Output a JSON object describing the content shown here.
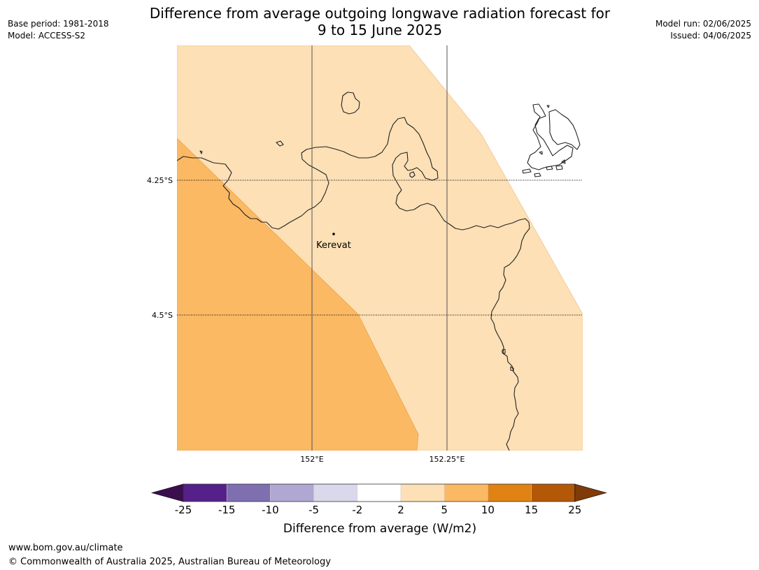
{
  "header": {
    "title_line1": "Difference from average outgoing longwave radiation forecast for",
    "title_line2": "9 to 15 June 2025",
    "base_period": "Base period: 1981-2018",
    "model": "Model: ACCESS-S2",
    "model_run": "Model run: 02/06/2025",
    "issued": "Issued: 04/06/2025"
  },
  "map": {
    "lat_labels": [
      "4.25°S",
      "4.5°S"
    ],
    "lon_labels": [
      "152°E",
      "152.25°E"
    ],
    "place": {
      "name": "Kerevat"
    },
    "colors": {
      "band_2_5": "#fde0b6",
      "band_5_10": "#fbb964",
      "coastline": "#222222",
      "gridline": "#555555"
    }
  },
  "colorbar": {
    "label": "Difference from average (W/m2)",
    "ticks": [
      "-25",
      "-15",
      "-10",
      "-5",
      "-2",
      "2",
      "5",
      "10",
      "15",
      "25"
    ],
    "colors": [
      "#3b0f4e",
      "#55208a",
      "#7f6fb0",
      "#b0a7d2",
      "#d9d9eb",
      "#ffffff",
      "#fde0b6",
      "#fbb964",
      "#e08214",
      "#b35806",
      "#7f3b08"
    ]
  },
  "footer": {
    "website": "www.bom.gov.au/climate",
    "copyright": "© Commonwealth of Australia 2025, Australian Bureau of Meteorology"
  }
}
